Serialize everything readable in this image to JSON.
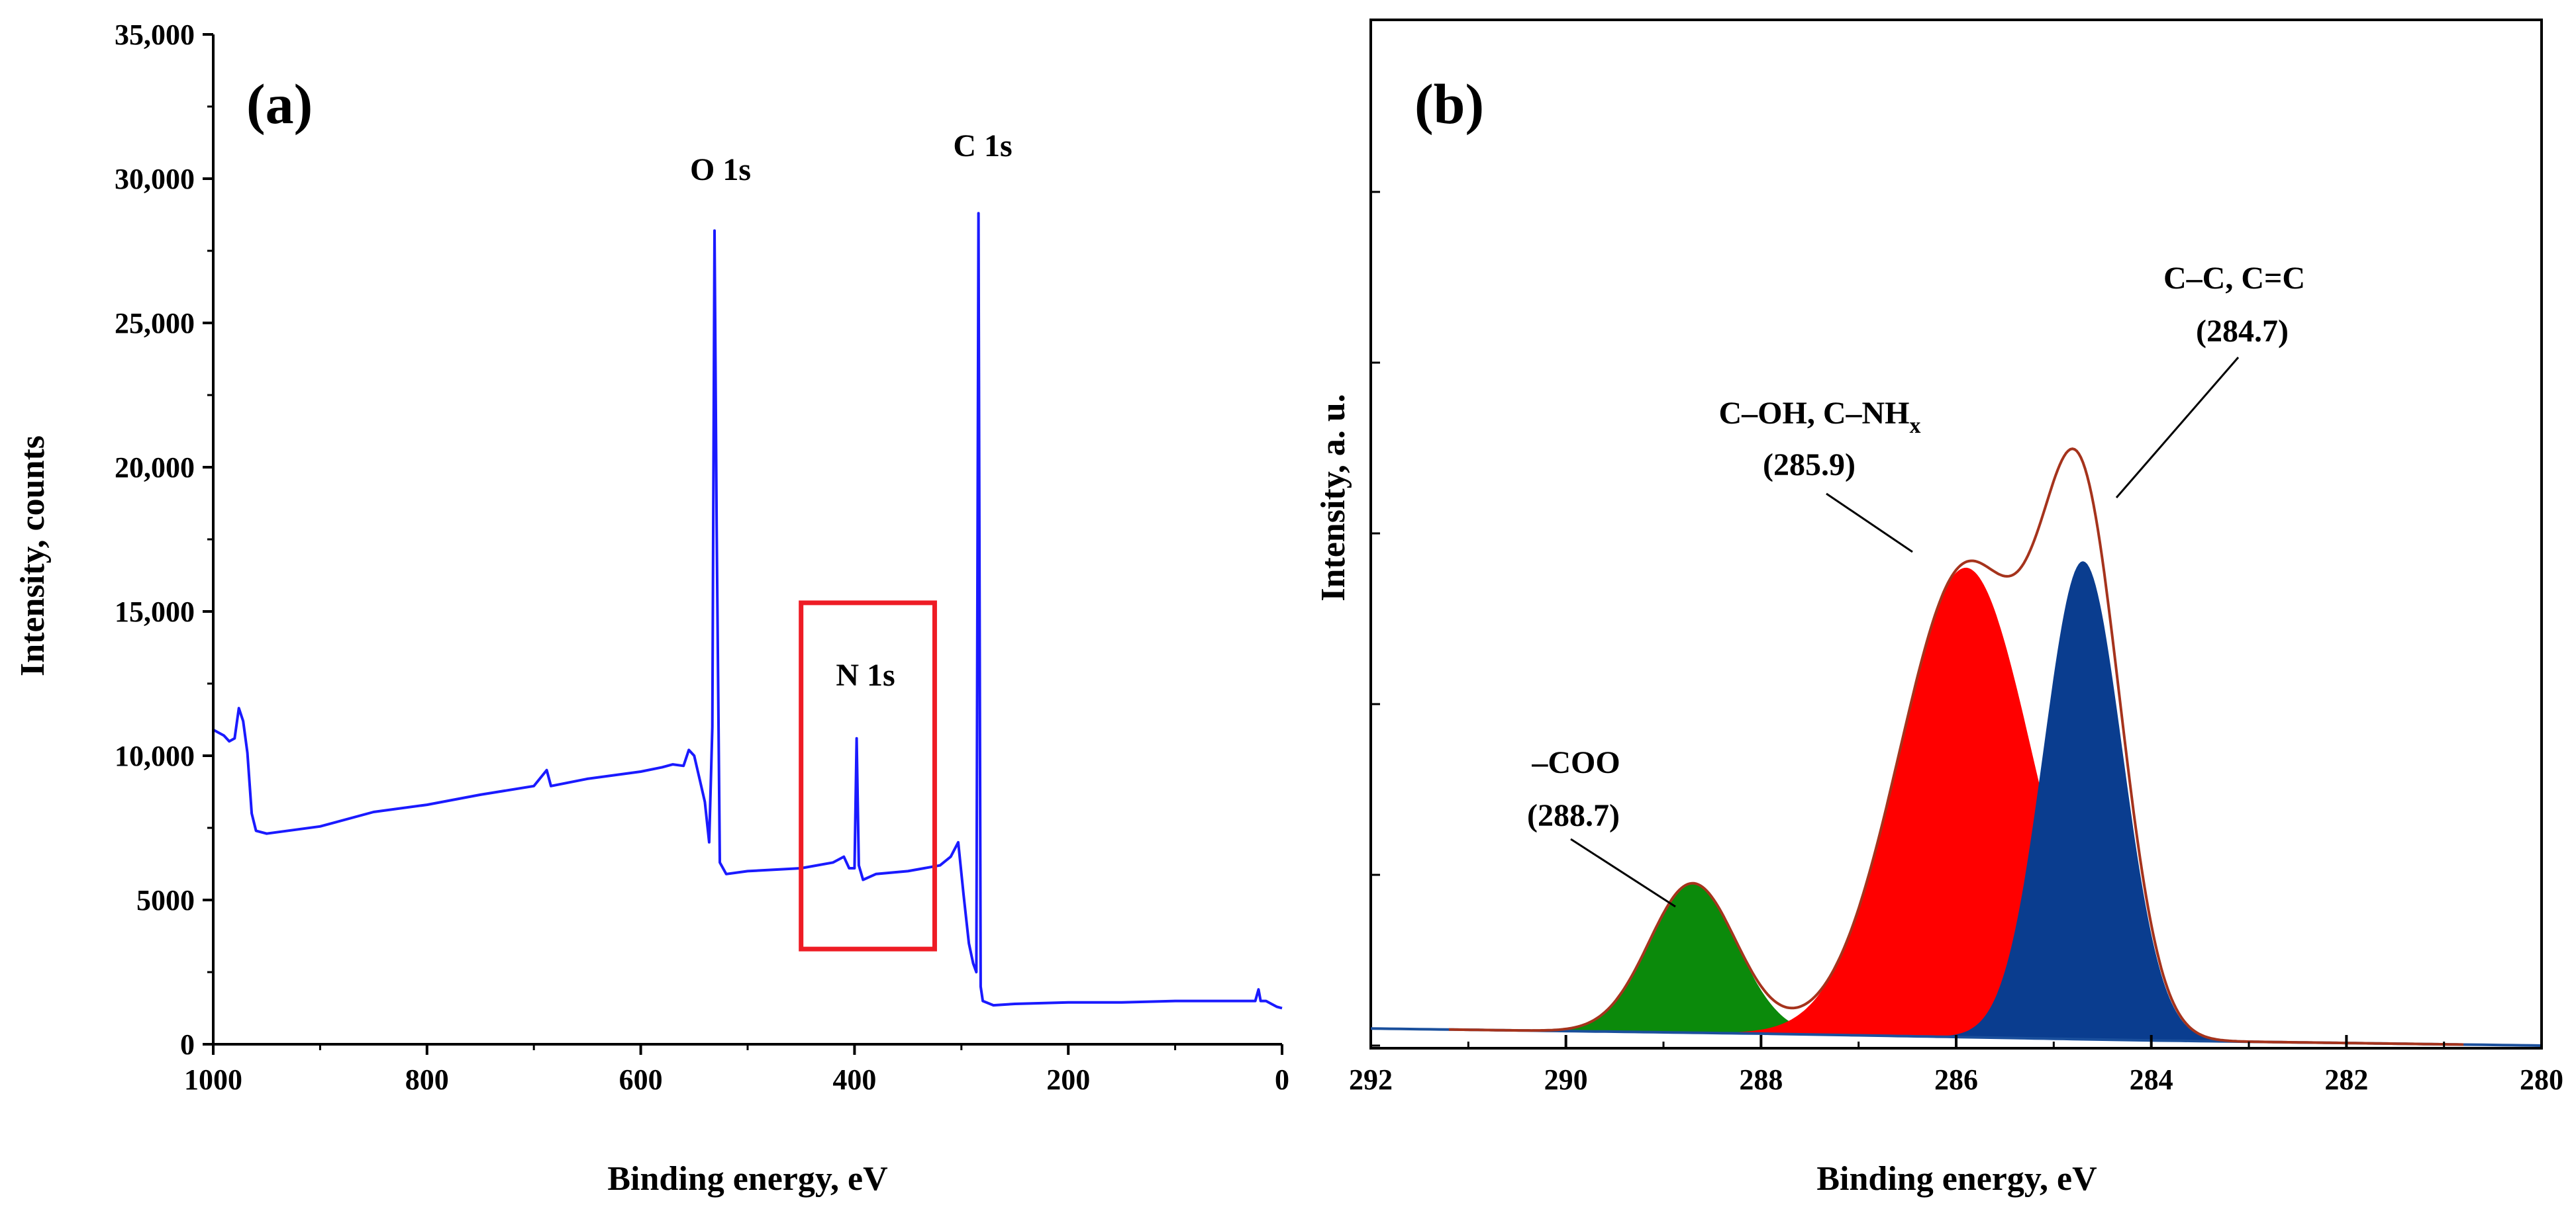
{
  "chart_data": [
    {
      "panel": "a",
      "panel_label": "(a)",
      "type": "line",
      "title": "",
      "xlabel": "Binding energy, eV",
      "ylabel": "Intensity, counts",
      "xlim": [
        1000,
        0
      ],
      "ylim": [
        0,
        35000
      ],
      "x_ticks": [
        1000,
        800,
        600,
        400,
        200,
        0
      ],
      "x_tick_labels": [
        "1000",
        "800",
        "600",
        "400",
        "200",
        "0"
      ],
      "y_ticks": [
        0,
        5000,
        10000,
        15000,
        20000,
        25000,
        30000,
        35000
      ],
      "y_tick_labels": [
        "0",
        "5000",
        "10,000",
        "15,000",
        "20,000",
        "25,000",
        "30,000",
        "35,000"
      ],
      "grid": false,
      "series": [
        {
          "name": "Survey spectrum",
          "color": "#1a1aff",
          "points": [
            [
              1000,
              10900
            ],
            [
              990,
              10700
            ],
            [
              985,
              10500
            ],
            [
              980,
              10600
            ],
            [
              976,
              11650
            ],
            [
              972,
              11200
            ],
            [
              968,
              10100
            ],
            [
              964,
              8000
            ],
            [
              960,
              7400
            ],
            [
              950,
              7300
            ],
            [
              900,
              7550
            ],
            [
              850,
              8050
            ],
            [
              800,
              8300
            ],
            [
              750,
              8650
            ],
            [
              700,
              8950
            ],
            [
              688,
              9500
            ],
            [
              684,
              8950
            ],
            [
              650,
              9200
            ],
            [
              600,
              9450
            ],
            [
              580,
              9600
            ],
            [
              570,
              9700
            ],
            [
              560,
              9650
            ],
            [
              555,
              10200
            ],
            [
              550,
              10000
            ],
            [
              545,
              9200
            ],
            [
              540,
              8400
            ],
            [
              536,
              7000
            ],
            [
              533,
              11000
            ],
            [
              531,
              28200
            ],
            [
              529,
              18000
            ],
            [
              526,
              6300
            ],
            [
              520,
              5900
            ],
            [
              500,
              6000
            ],
            [
              450,
              6100
            ],
            [
              420,
              6300
            ],
            [
              410,
              6500
            ],
            [
              405,
              6100
            ],
            [
              400,
              6100
            ],
            [
              398,
              10600
            ],
            [
              396,
              6200
            ],
            [
              392,
              5700
            ],
            [
              380,
              5900
            ],
            [
              350,
              6000
            ],
            [
              320,
              6200
            ],
            [
              310,
              6500
            ],
            [
              303,
              7000
            ],
            [
              298,
              5200
            ],
            [
              293,
              3500
            ],
            [
              289,
              2800
            ],
            [
              286,
              2500
            ],
            [
              284,
              28800
            ],
            [
              282,
              2000
            ],
            [
              280,
              1500
            ],
            [
              270,
              1350
            ],
            [
              250,
              1400
            ],
            [
              200,
              1450
            ],
            [
              150,
              1450
            ],
            [
              100,
              1500
            ],
            [
              50,
              1500
            ],
            [
              25,
              1500
            ],
            [
              22,
              1900
            ],
            [
              20,
              1500
            ],
            [
              15,
              1500
            ],
            [
              10,
              1400
            ],
            [
              5,
              1300
            ],
            [
              0,
              1250
            ]
          ]
        }
      ],
      "annotations": [
        {
          "text": "O 1s",
          "x": 531,
          "y": 30000
        },
        {
          "text": "C 1s",
          "x": 284,
          "y": 30800
        },
        {
          "text": "N 1s",
          "x": 398,
          "y": 12000
        }
      ],
      "highlight_box": {
        "color": "#ee1c25",
        "x_range": [
          450,
          325
        ],
        "y_range": [
          3300,
          15300
        ]
      }
    },
    {
      "panel": "b",
      "panel_label": "(b)",
      "type": "area",
      "title": "",
      "xlabel": "Binding energy, eV",
      "ylabel": "Intensity, a. u.",
      "xlim": [
        292,
        280
      ],
      "ylim": [
        0,
        1
      ],
      "x_ticks": [
        292,
        290,
        288,
        286,
        284,
        282,
        280
      ],
      "x_tick_labels": [
        "292",
        "290",
        "288",
        "286",
        "284",
        "282",
        "280"
      ],
      "y_tick_labels_shown": false,
      "grid": false,
      "baseline": [
        [
          292,
          0.02
        ],
        [
          290,
          0.017
        ],
        [
          288,
          0.014
        ],
        [
          286,
          0.01
        ],
        [
          284,
          0.006
        ],
        [
          282,
          0.003
        ],
        [
          280,
          0.0
        ]
      ],
      "background": {
        "name": "Baseline",
        "color": "#1a4f9c"
      },
      "components": [
        {
          "name": "-COO",
          "center": 288.7,
          "height": 0.175,
          "fwhm": 1.05,
          "color": "#0b8a0b"
        },
        {
          "name": "C-OH, C-NHx",
          "center": 285.9,
          "height": 0.55,
          "fwhm": 1.6,
          "color": "#ff0000"
        },
        {
          "name": "C-C, C=C",
          "center": 284.7,
          "height": 0.56,
          "fwhm": 0.95,
          "color": "#0a3d8f"
        }
      ],
      "envelope": {
        "name": "Envelope",
        "color": "#a5331c"
      },
      "annotations": [
        {
          "line1": "–COO",
          "line2": "(288.7)"
        },
        {
          "line1_main": "C–OH, C–NH",
          "line1_sub": "x",
          "line2": "(285.9)"
        },
        {
          "line1": "C–C, C=C",
          "line2": "(284.7)"
        }
      ]
    }
  ]
}
